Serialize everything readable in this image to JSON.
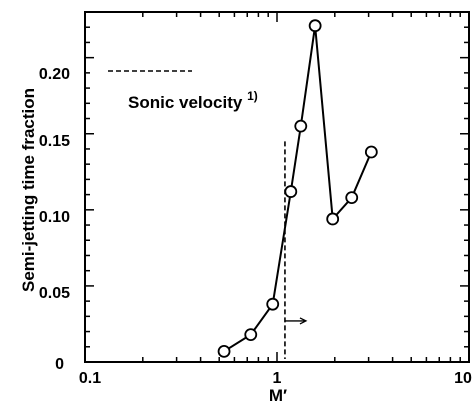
{
  "chart_data": {
    "type": "line",
    "xscale": "log",
    "xlim": [
      0.1,
      10
    ],
    "ylim": [
      0,
      0.23
    ],
    "xlabel": "M′",
    "ylabel": "Semi-jetting  time fraction",
    "x_tick_labels": [
      "0.1",
      "1",
      "10"
    ],
    "y_tick_labels": [
      "0",
      "0.05",
      "0.10",
      "0.15",
      "0.20"
    ],
    "series": [
      {
        "x": [
          0.53,
          0.73,
          0.95,
          1.18,
          1.33,
          1.58,
          1.95,
          2.45,
          3.1
        ],
        "y": [
          0.007,
          0.018,
          0.038,
          0.112,
          0.155,
          0.221,
          0.094,
          0.108,
          0.138
        ]
      }
    ],
    "reference_line": {
      "x": 1.1,
      "style": "dashed"
    },
    "legend": {
      "label": "Sonic velocity",
      "superscript": "1)",
      "position": "top-left"
    },
    "grid": false
  }
}
